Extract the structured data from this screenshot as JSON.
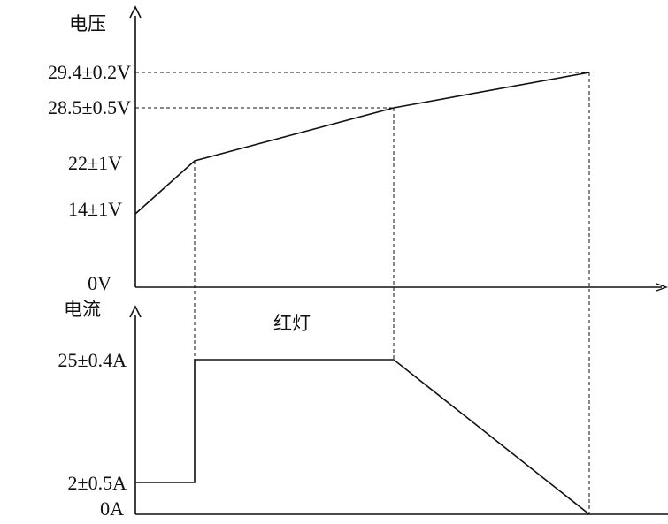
{
  "voltage_panel": {
    "axis_label": "电压",
    "ticks": [
      {
        "id": "v0",
        "label": "0V",
        "value": 0
      },
      {
        "id": "v14",
        "label": "14±1V",
        "value": 14
      },
      {
        "id": "v22",
        "label": "22±1V",
        "value": 22
      },
      {
        "id": "v285",
        "label": "28.5±0.5V",
        "value": 28.5
      },
      {
        "id": "v294",
        "label": "29.4±0.2V",
        "value": 29.4
      }
    ]
  },
  "current_panel": {
    "axis_label": "电流",
    "ticks": [
      {
        "id": "a0",
        "label": "0A",
        "value": 0
      },
      {
        "id": "a2",
        "label": "2±0.5A",
        "value": 2
      },
      {
        "id": "a25",
        "label": "25±0.4A",
        "value": 25
      }
    ],
    "annotation": "红灯"
  }
}
